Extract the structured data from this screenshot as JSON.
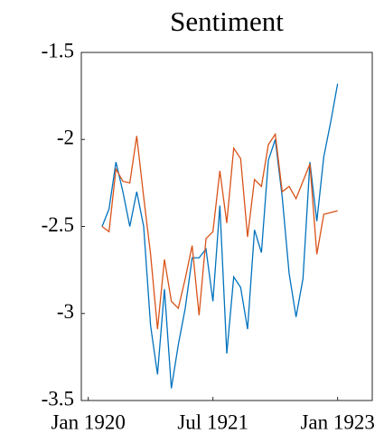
{
  "chart_data": {
    "type": "line",
    "title": "Sentiment",
    "x": [
      "1920-03",
      "1920-04",
      "1920-05",
      "1920-06",
      "1920-07",
      "1920-08",
      "1920-09",
      "1920-10",
      "1920-11",
      "1920-12",
      "1921-01",
      "1921-02",
      "1921-03",
      "1921-04",
      "1921-05",
      "1921-06",
      "1921-07",
      "1921-08",
      "1921-09",
      "1921-10",
      "1921-11",
      "1921-12",
      "1922-01",
      "1922-02",
      "1922-03",
      "1922-04",
      "1922-05",
      "1922-06",
      "1922-07",
      "1922-08",
      "1922-09",
      "1922-10",
      "1922-11",
      "1922-12",
      "1923-01"
    ],
    "series": [
      {
        "color": "#0072bd",
        "values": [
          -2.5,
          -2.4,
          -2.13,
          -2.3,
          -2.5,
          -2.3,
          -2.5,
          -3.07,
          -3.35,
          -2.86,
          -3.43,
          -3.18,
          -2.97,
          -2.68,
          -2.68,
          -2.63,
          -2.93,
          -2.38,
          -3.23,
          -2.79,
          -2.85,
          -3.09,
          -2.52,
          -2.65,
          -2.12,
          -2.0,
          -2.33,
          -2.77,
          -3.02,
          -2.8,
          -2.13,
          -2.47,
          -2.1,
          -1.9,
          -1.68
        ]
      },
      {
        "color": "#d95319",
        "values": [
          -2.5,
          -2.53,
          -2.17,
          -2.24,
          -2.25,
          -1.98,
          -2.33,
          -2.66,
          -3.09,
          -2.69,
          -2.93,
          -2.97,
          -2.8,
          -2.61,
          -3.01,
          -2.57,
          -2.53,
          -2.18,
          -2.48,
          -2.05,
          -2.11,
          -2.56,
          -2.23,
          -2.27,
          -2.03,
          -1.97,
          -2.3,
          -2.27,
          -2.34,
          -2.24,
          -2.14,
          -2.66,
          -2.43,
          -2.42,
          -2.41
        ]
      }
    ],
    "xlim": [
      "1919-12",
      "1923-06"
    ],
    "xticks": [
      {
        "value": "1920-01",
        "label": "Jan 1920"
      },
      {
        "value": "1921-07",
        "label": "Jul 1921"
      },
      {
        "value": "1923-01",
        "label": "Jan 1923"
      }
    ],
    "ylim": [
      -3.5,
      -1.5
    ],
    "yticks": [
      -3.5,
      -3,
      -2.5,
      -2,
      -1.5
    ]
  }
}
